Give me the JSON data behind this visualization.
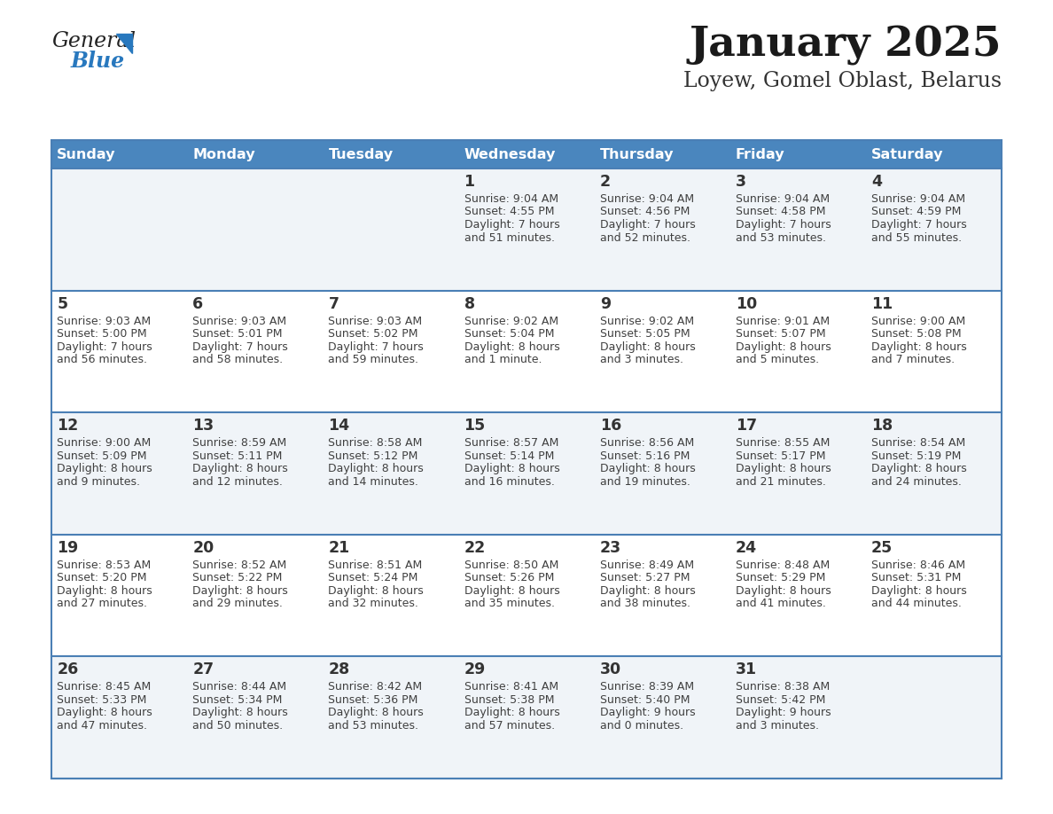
{
  "title": "January 2025",
  "subtitle": "Loyew, Gomel Oblast, Belarus",
  "header_bg": "#4a86be",
  "header_text": "#ffffff",
  "day_names": [
    "Sunday",
    "Monday",
    "Tuesday",
    "Wednesday",
    "Thursday",
    "Friday",
    "Saturday"
  ],
  "row_bg_even": "#f0f4f8",
  "row_bg_odd": "#ffffff",
  "cell_text_color": "#404040",
  "day_num_color": "#333333",
  "border_color": "#4a7fb5",
  "title_color": "#1a1a1a",
  "subtitle_color": "#333333",
  "logo_general_color": "#222222",
  "logo_blue_color": "#2878be",
  "calendar": [
    [
      null,
      null,
      null,
      {
        "day": 1,
        "sunrise": "9:04 AM",
        "sunset": "4:55 PM",
        "daylight": "7 hours",
        "minutes": "51 minutes"
      },
      {
        "day": 2,
        "sunrise": "9:04 AM",
        "sunset": "4:56 PM",
        "daylight": "7 hours",
        "minutes": "52 minutes"
      },
      {
        "day": 3,
        "sunrise": "9:04 AM",
        "sunset": "4:58 PM",
        "daylight": "7 hours",
        "minutes": "53 minutes"
      },
      {
        "day": 4,
        "sunrise": "9:04 AM",
        "sunset": "4:59 PM",
        "daylight": "7 hours",
        "minutes": "55 minutes"
      }
    ],
    [
      {
        "day": 5,
        "sunrise": "9:03 AM",
        "sunset": "5:00 PM",
        "daylight": "7 hours",
        "minutes": "56 minutes"
      },
      {
        "day": 6,
        "sunrise": "9:03 AM",
        "sunset": "5:01 PM",
        "daylight": "7 hours",
        "minutes": "58 minutes"
      },
      {
        "day": 7,
        "sunrise": "9:03 AM",
        "sunset": "5:02 PM",
        "daylight": "7 hours",
        "minutes": "59 minutes"
      },
      {
        "day": 8,
        "sunrise": "9:02 AM",
        "sunset": "5:04 PM",
        "daylight": "8 hours",
        "minutes": "1 minute"
      },
      {
        "day": 9,
        "sunrise": "9:02 AM",
        "sunset": "5:05 PM",
        "daylight": "8 hours",
        "minutes": "3 minutes"
      },
      {
        "day": 10,
        "sunrise": "9:01 AM",
        "sunset": "5:07 PM",
        "daylight": "8 hours",
        "minutes": "5 minutes"
      },
      {
        "day": 11,
        "sunrise": "9:00 AM",
        "sunset": "5:08 PM",
        "daylight": "8 hours",
        "minutes": "7 minutes"
      }
    ],
    [
      {
        "day": 12,
        "sunrise": "9:00 AM",
        "sunset": "5:09 PM",
        "daylight": "8 hours",
        "minutes": "9 minutes"
      },
      {
        "day": 13,
        "sunrise": "8:59 AM",
        "sunset": "5:11 PM",
        "daylight": "8 hours",
        "minutes": "12 minutes"
      },
      {
        "day": 14,
        "sunrise": "8:58 AM",
        "sunset": "5:12 PM",
        "daylight": "8 hours",
        "minutes": "14 minutes"
      },
      {
        "day": 15,
        "sunrise": "8:57 AM",
        "sunset": "5:14 PM",
        "daylight": "8 hours",
        "minutes": "16 minutes"
      },
      {
        "day": 16,
        "sunrise": "8:56 AM",
        "sunset": "5:16 PM",
        "daylight": "8 hours",
        "minutes": "19 minutes"
      },
      {
        "day": 17,
        "sunrise": "8:55 AM",
        "sunset": "5:17 PM",
        "daylight": "8 hours",
        "minutes": "21 minutes"
      },
      {
        "day": 18,
        "sunrise": "8:54 AM",
        "sunset": "5:19 PM",
        "daylight": "8 hours",
        "minutes": "24 minutes"
      }
    ],
    [
      {
        "day": 19,
        "sunrise": "8:53 AM",
        "sunset": "5:20 PM",
        "daylight": "8 hours",
        "minutes": "27 minutes"
      },
      {
        "day": 20,
        "sunrise": "8:52 AM",
        "sunset": "5:22 PM",
        "daylight": "8 hours",
        "minutes": "29 minutes"
      },
      {
        "day": 21,
        "sunrise": "8:51 AM",
        "sunset": "5:24 PM",
        "daylight": "8 hours",
        "minutes": "32 minutes"
      },
      {
        "day": 22,
        "sunrise": "8:50 AM",
        "sunset": "5:26 PM",
        "daylight": "8 hours",
        "minutes": "35 minutes"
      },
      {
        "day": 23,
        "sunrise": "8:49 AM",
        "sunset": "5:27 PM",
        "daylight": "8 hours",
        "minutes": "38 minutes"
      },
      {
        "day": 24,
        "sunrise": "8:48 AM",
        "sunset": "5:29 PM",
        "daylight": "8 hours",
        "minutes": "41 minutes"
      },
      {
        "day": 25,
        "sunrise": "8:46 AM",
        "sunset": "5:31 PM",
        "daylight": "8 hours",
        "minutes": "44 minutes"
      }
    ],
    [
      {
        "day": 26,
        "sunrise": "8:45 AM",
        "sunset": "5:33 PM",
        "daylight": "8 hours",
        "minutes": "47 minutes"
      },
      {
        "day": 27,
        "sunrise": "8:44 AM",
        "sunset": "5:34 PM",
        "daylight": "8 hours",
        "minutes": "50 minutes"
      },
      {
        "day": 28,
        "sunrise": "8:42 AM",
        "sunset": "5:36 PM",
        "daylight": "8 hours",
        "minutes": "53 minutes"
      },
      {
        "day": 29,
        "sunrise": "8:41 AM",
        "sunset": "5:38 PM",
        "daylight": "8 hours",
        "minutes": "57 minutes"
      },
      {
        "day": 30,
        "sunrise": "8:39 AM",
        "sunset": "5:40 PM",
        "daylight": "9 hours",
        "minutes": "0 minutes"
      },
      {
        "day": 31,
        "sunrise": "8:38 AM",
        "sunset": "5:42 PM",
        "daylight": "9 hours",
        "minutes": "3 minutes"
      },
      null
    ]
  ]
}
